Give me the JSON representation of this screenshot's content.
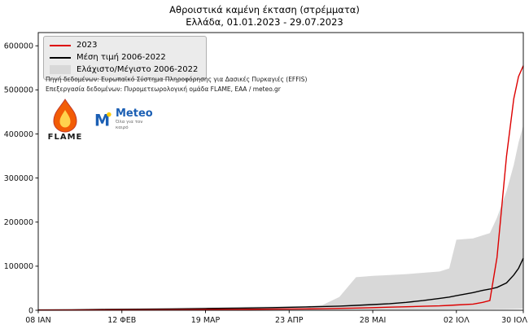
{
  "chart_data": {
    "type": "line",
    "title": "Αθροιστικά καμένη έκταση (στρέμματα)",
    "subtitle": "Ελλάδα, 01.01.2023 - 29.07.2023",
    "ylim": [
      0,
      630000
    ],
    "x_range_days": [
      0,
      203
    ],
    "grid": false,
    "legend_position": "upper left",
    "yticks": [
      0,
      100000,
      200000,
      300000,
      400000,
      500000,
      600000
    ],
    "xticks": [
      {
        "day": 0,
        "label": "08 ΙΑΝ"
      },
      {
        "day": 35,
        "label": "12 ΦΕΒ"
      },
      {
        "day": 70,
        "label": "19 ΜΑΡ"
      },
      {
        "day": 105,
        "label": "23 ΑΠΡ"
      },
      {
        "day": 140,
        "label": "28 ΜΑΙ"
      },
      {
        "day": 175,
        "label": "02 ΙΟΛ"
      },
      {
        "day": 203,
        "label": "30 ΙΟΛ"
      }
    ],
    "x": [
      0,
      14,
      28,
      42,
      56,
      70,
      84,
      98,
      112,
      119,
      126,
      133,
      140,
      147,
      154,
      161,
      168,
      172,
      175,
      182,
      186,
      189,
      192,
      196,
      199,
      201,
      203
    ],
    "band": {
      "name": "Ελάχιστο/Μέγιστο 2006-2022",
      "color": "#d8d8d8",
      "max": [
        1500,
        2500,
        3500,
        4500,
        5500,
        6500,
        7500,
        8500,
        9500,
        12000,
        30000,
        75000,
        78000,
        80000,
        82000,
        85000,
        88000,
        95000,
        160000,
        163000,
        170000,
        175000,
        210000,
        270000,
        330000,
        380000,
        420000
      ],
      "min": [
        100,
        150,
        200,
        250,
        300,
        350,
        400,
        450,
        500,
        550,
        600,
        700,
        800,
        900,
        1000,
        1100,
        1200,
        1300,
        1400,
        1600,
        1800,
        2000,
        2200,
        2600,
        3000,
        3400,
        4000
      ]
    },
    "series": [
      {
        "name": "Μέση τιμή 2006-2022",
        "color": "#000000",
        "z": 1,
        "values": [
          800,
          1200,
          1800,
          2400,
          3000,
          3800,
          4800,
          6000,
          7500,
          8500,
          9500,
          11000,
          13000,
          15000,
          18000,
          22000,
          27000,
          30000,
          33000,
          40000,
          45000,
          48000,
          52000,
          62000,
          80000,
          95000,
          118000
        ]
      },
      {
        "name": "2023",
        "color": "#dd0000",
        "z": 2,
        "values": [
          300,
          500,
          800,
          1000,
          1300,
          1600,
          2000,
          2500,
          3200,
          3600,
          4200,
          5000,
          6000,
          7000,
          8000,
          9000,
          10000,
          11000,
          12000,
          14000,
          18000,
          22000,
          120000,
          350000,
          480000,
          530000,
          555000
        ]
      }
    ]
  },
  "legend": {
    "items": [
      {
        "label": "2023",
        "type": "line",
        "color": "#dd0000"
      },
      {
        "label": "Μέση τιμή 2006-2022",
        "type": "line",
        "color": "#000000"
      },
      {
        "label": "Ελάχιστο/Μέγιστο 2006-2022",
        "type": "patch",
        "color": "#d8d8d8"
      }
    ]
  },
  "source": {
    "line1": "Πηγή δεδομένων: Ευρωπαϊκό Σύστημα Πληροφόρησης για Δασικές Πυρκαγιές (EFFIS)",
    "line2": "Επεξεργασία δεδομένων: Πυρομετεωρολογική ομάδα FLAME, ΕΑΑ / meteo.gr"
  },
  "logos": {
    "flame_text": "FLAME",
    "meteo_text": "Meteo",
    "meteo_tagline": "Όλα για τον καιρό"
  }
}
